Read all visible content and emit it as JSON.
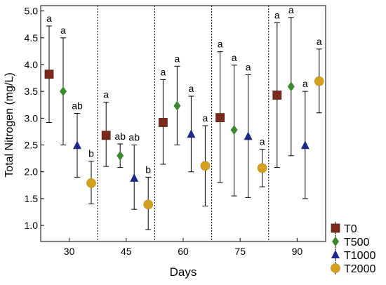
{
  "chart_data": {
    "type": "scatter",
    "xlabel": "Days",
    "ylabel": "Total Nitrogen (mg/L)",
    "ylim": [
      0.7,
      5.1
    ],
    "yticks": [
      "1.0",
      "1.5",
      "2.0",
      "2.5",
      "3.0",
      "3.5",
      "4.0",
      "4.5",
      "5.0"
    ],
    "categories": [
      "30",
      "45",
      "60",
      "75",
      "90"
    ],
    "grid": false,
    "panel_dividers": "dotted",
    "legend_position": "bottom-right",
    "series": [
      {
        "name": "T0",
        "marker": "square",
        "color": "#7b2a1e",
        "values": [
          3.82,
          2.68,
          2.92,
          3.01,
          3.43
        ],
        "error_low": [
          2.92,
          2.1,
          2.14,
          1.8,
          2.08
        ],
        "error_high": [
          4.72,
          3.3,
          3.72,
          4.24,
          4.78
        ],
        "letters": [
          "a",
          "a",
          "a",
          "a",
          "a"
        ]
      },
      {
        "name": "T500",
        "marker": "diamond",
        "color": "#3c8a2e",
        "values": [
          3.5,
          2.3,
          3.23,
          2.78,
          3.59
        ],
        "error_low": [
          2.5,
          2.08,
          2.5,
          1.55,
          2.3
        ],
        "error_high": [
          4.5,
          2.52,
          3.97,
          3.99,
          4.88
        ],
        "letters": [
          "a",
          "ab",
          "a",
          "a",
          "a"
        ]
      },
      {
        "name": "T1000",
        "marker": "triangle",
        "color": "#1e2a8a",
        "values": [
          2.49,
          1.88,
          2.7,
          2.66,
          2.49
        ],
        "error_low": [
          1.9,
          1.3,
          2.0,
          1.52,
          1.5
        ],
        "error_high": [
          3.09,
          2.5,
          3.41,
          3.81,
          3.5
        ],
        "letters": [
          "ab",
          "ab",
          "a",
          "a",
          "a"
        ]
      },
      {
        "name": "T2000",
        "marker": "circle",
        "color": "#d4a020",
        "values": [
          1.79,
          1.39,
          2.11,
          2.07,
          3.69
        ],
        "error_low": [
          1.4,
          0.92,
          1.36,
          1.72,
          3.1
        ],
        "error_high": [
          2.2,
          1.9,
          2.86,
          2.42,
          4.29
        ],
        "letters": [
          "b",
          "b",
          "a",
          "a",
          "a"
        ]
      }
    ]
  }
}
